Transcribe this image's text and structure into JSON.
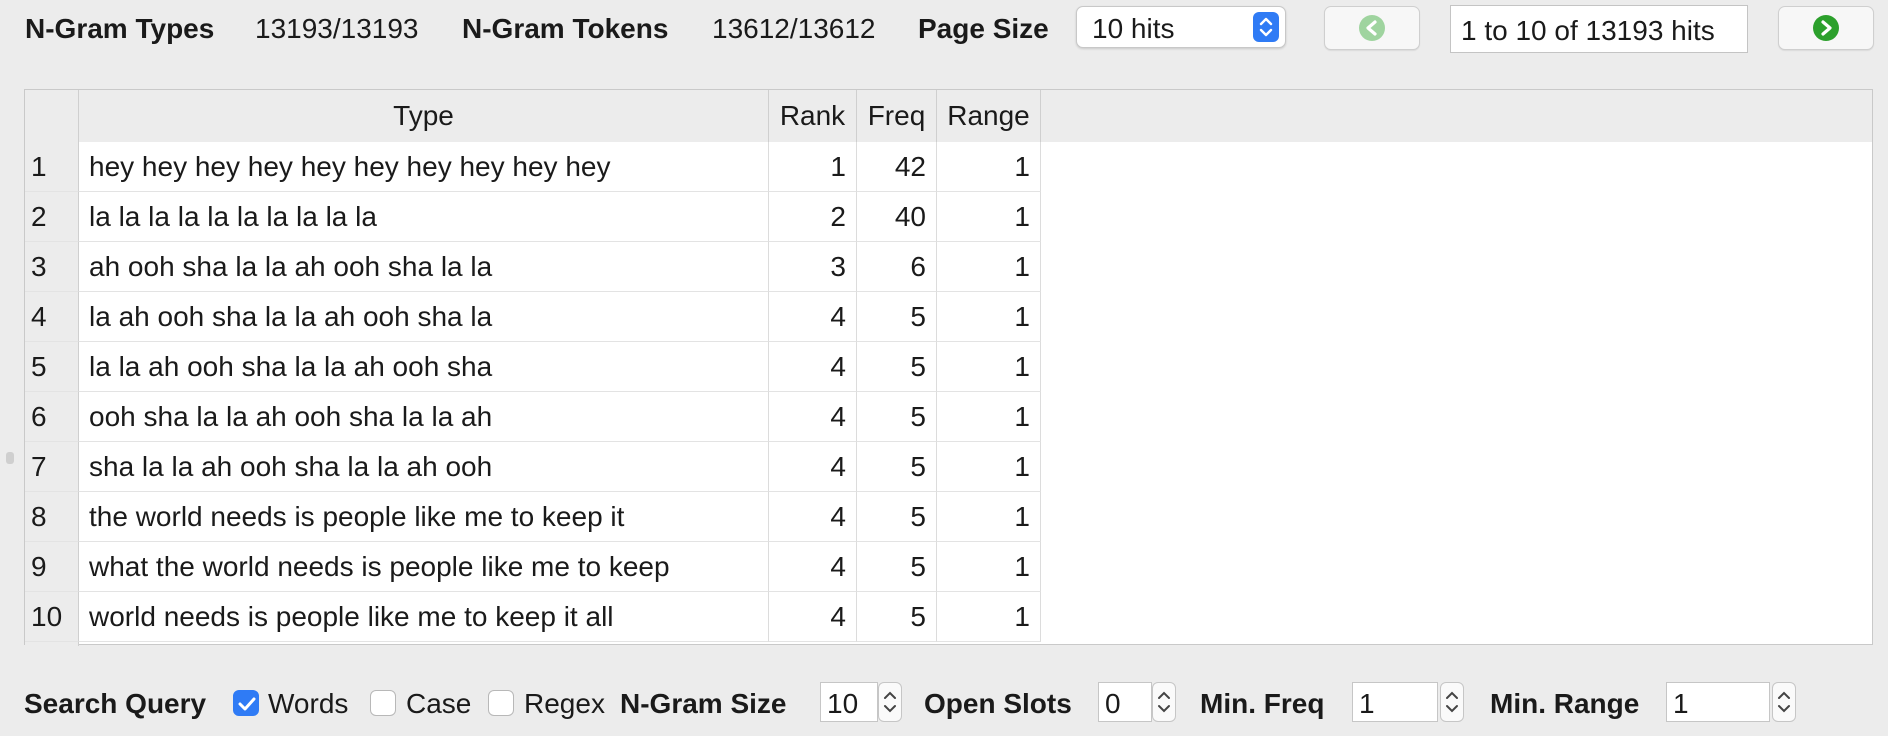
{
  "header": {
    "ngram_types_label": "N-Gram Types",
    "ngram_types_value": "13193/13193",
    "ngram_tokens_label": "N-Gram Tokens",
    "ngram_tokens_value": "13612/13612",
    "page_size_label": "Page Size",
    "page_size_value": "10 hits",
    "hits_range": "1 to 10 of 13193 hits",
    "prev_icon": "back-arrow-icon",
    "next_icon": "forward-arrow-icon",
    "colors": {
      "next": "#2ca02c",
      "prev": "#9fd49f",
      "accent": "#2f7bf5"
    }
  },
  "table": {
    "columns": [
      "Type",
      "Rank",
      "Freq",
      "Range"
    ],
    "rows": [
      {
        "num": "1",
        "type": "hey hey hey hey hey hey hey hey hey hey",
        "rank": "1",
        "freq": "42",
        "range": "1"
      },
      {
        "num": "2",
        "type": "la la la la la la la la la la",
        "rank": "2",
        "freq": "40",
        "range": "1"
      },
      {
        "num": "3",
        "type": "ah ooh sha la la ah ooh sha la la",
        "rank": "3",
        "freq": "6",
        "range": "1"
      },
      {
        "num": "4",
        "type": "la ah ooh sha la la ah ooh sha la",
        "rank": "4",
        "freq": "5",
        "range": "1"
      },
      {
        "num": "5",
        "type": "la la ah ooh sha la la ah ooh sha",
        "rank": "4",
        "freq": "5",
        "range": "1"
      },
      {
        "num": "6",
        "type": "ooh sha la la ah ooh sha la la ah",
        "rank": "4",
        "freq": "5",
        "range": "1"
      },
      {
        "num": "7",
        "type": "sha la la ah ooh sha la la ah ooh",
        "rank": "4",
        "freq": "5",
        "range": "1"
      },
      {
        "num": "8",
        "type": "the world needs is people like me to keep it",
        "rank": "4",
        "freq": "5",
        "range": "1"
      },
      {
        "num": "9",
        "type": "what the world needs is people like me to keep",
        "rank": "4",
        "freq": "5",
        "range": "1"
      },
      {
        "num": "10",
        "type": "world needs is people like me to keep it all",
        "rank": "4",
        "freq": "5",
        "range": "1"
      }
    ]
  },
  "search": {
    "query_label": "Search Query",
    "words_label": "Words",
    "words_checked": true,
    "case_label": "Case",
    "case_checked": false,
    "regex_label": "Regex",
    "regex_checked": false,
    "ngram_size_label": "N-Gram Size",
    "ngram_size_value": "10",
    "open_slots_label": "Open Slots",
    "open_slots_value": "0",
    "min_freq_label": "Min. Freq",
    "min_freq_value": "1",
    "min_range_label": "Min. Range",
    "min_range_value": "1"
  }
}
